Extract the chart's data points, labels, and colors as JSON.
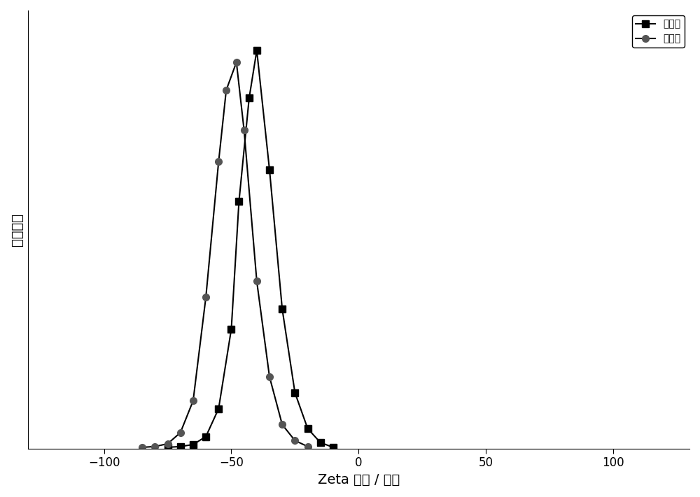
{
  "series1_label": "处理前",
  "series2_label": "处理后",
  "series1_x": [
    -75,
    -70,
    -65,
    -60,
    -55,
    -50,
    -47,
    -43,
    -40,
    -35,
    -30,
    -25,
    -20,
    -15,
    -10
  ],
  "series1_y": [
    0.003,
    0.005,
    0.01,
    0.03,
    0.1,
    0.3,
    0.62,
    0.88,
    1.0,
    0.7,
    0.35,
    0.14,
    0.05,
    0.015,
    0.003
  ],
  "series2_x": [
    -85,
    -80,
    -75,
    -70,
    -65,
    -60,
    -55,
    -52,
    -48,
    -45,
    -40,
    -35,
    -30,
    -25,
    -20
  ],
  "series2_y": [
    0.003,
    0.005,
    0.012,
    0.04,
    0.12,
    0.38,
    0.72,
    0.9,
    0.97,
    0.8,
    0.42,
    0.18,
    0.06,
    0.02,
    0.005
  ],
  "xlabel": "Zeta 电势 / 毫伏",
  "ylabel": "任意单位",
  "xlim": [
    -130,
    130
  ],
  "ylim": [
    0,
    1.1
  ],
  "xticks": [
    -100,
    -50,
    0,
    50,
    100
  ],
  "line_color": "#000000",
  "series1_marker": "s",
  "series2_marker": "o",
  "series2_marker_color": "#555555",
  "legend_loc": "upper right",
  "marker_size": 7,
  "line_width": 1.5,
  "bg_color": "#ffffff"
}
